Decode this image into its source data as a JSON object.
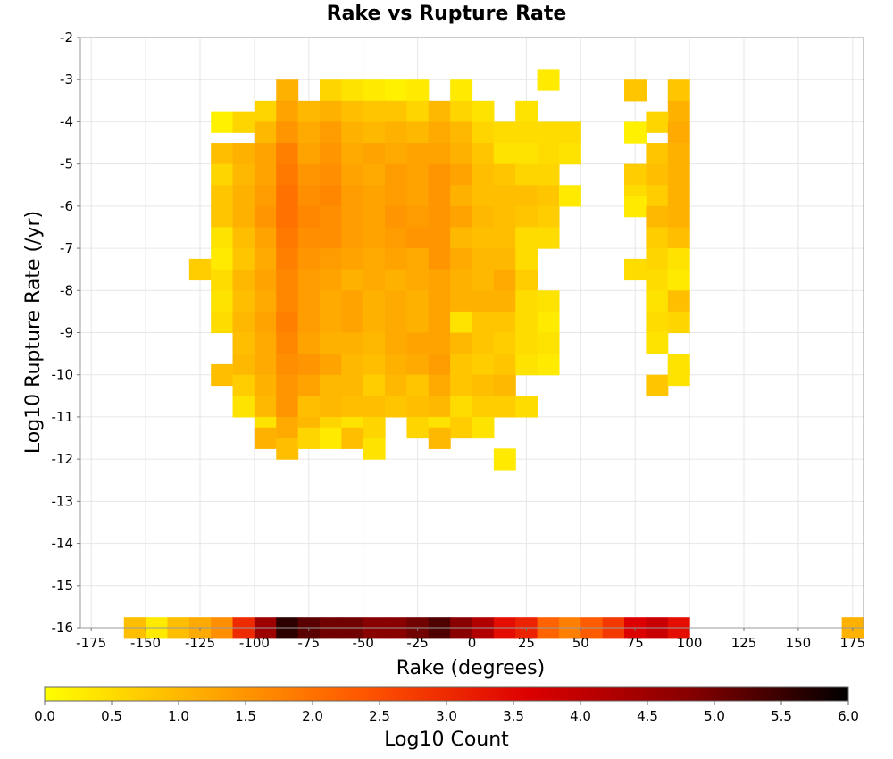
{
  "chart_data": {
    "type": "heatmap",
    "title": "Rake vs Rupture Rate",
    "xlabel": "Rake (degrees)",
    "ylabel": "Log10 Rupture Rate (/yr)",
    "xlim": [
      -180,
      180
    ],
    "ylim": [
      -16,
      -2
    ],
    "x_ticks": [
      -175,
      -150,
      -125,
      -100,
      -75,
      -50,
      -25,
      0,
      25,
      50,
      75,
      100,
      125,
      150,
      175
    ],
    "y_ticks": [
      -2,
      -3,
      -4,
      -5,
      -6,
      -7,
      -8,
      -9,
      -10,
      -11,
      -12,
      -13,
      -14,
      -15,
      -16
    ],
    "bin_width_x": 10,
    "bin_height_y": 0.5,
    "grid": true,
    "colorbar": {
      "label": "Log10 Count",
      "min": 0.0,
      "max": 6.0,
      "ticks": [
        "0.0",
        "0.5",
        "1.0",
        "1.5",
        "2.0",
        "2.5",
        "3.0",
        "3.5",
        "4.0",
        "4.5",
        "5.0",
        "5.5",
        "6.0"
      ],
      "colors": [
        "#ffff00",
        "#ffaa00",
        "#ff5500",
        "#dd0000",
        "#880000",
        "#000000"
      ]
    },
    "cells_note": "each cell: [rake bin center (degrees), log10 rate bin center, log10 count]",
    "cells": [
      [
        -155,
        -16,
        0.9
      ],
      [
        -145,
        -16,
        0.3
      ],
      [
        -135,
        -16,
        0.9
      ],
      [
        -125,
        -16,
        1.2
      ],
      [
        -115,
        -16,
        1.6
      ],
      [
        -105,
        -16,
        3.0
      ],
      [
        -95,
        -16,
        4.5
      ],
      [
        -85,
        -16,
        5.6
      ],
      [
        -75,
        -16,
        5.2
      ],
      [
        -65,
        -16,
        5.0
      ],
      [
        -55,
        -16,
        5.0
      ],
      [
        -45,
        -16,
        4.8
      ],
      [
        -35,
        -16,
        4.8
      ],
      [
        -25,
        -16,
        5.0
      ],
      [
        -15,
        -16,
        5.3
      ],
      [
        -5,
        -16,
        4.8
      ],
      [
        5,
        -16,
        4.2
      ],
      [
        15,
        -16,
        3.4
      ],
      [
        25,
        -16,
        3.1
      ],
      [
        35,
        -16,
        2.2
      ],
      [
        45,
        -16,
        1.8
      ],
      [
        55,
        -16,
        2.3
      ],
      [
        65,
        -16,
        2.8
      ],
      [
        75,
        -16,
        3.6
      ],
      [
        85,
        -16,
        3.9
      ],
      [
        95,
        -16,
        3.4
      ],
      [
        175,
        -16,
        1.1
      ],
      [
        -85,
        -3.25,
        1.1
      ],
      [
        -65,
        -3.25,
        0.6
      ],
      [
        -55,
        -3.25,
        0.4
      ],
      [
        -45,
        -3.25,
        0.3
      ],
      [
        -35,
        -3.25,
        0.2
      ],
      [
        -25,
        -3.25,
        0.3
      ],
      [
        -5,
        -3.25,
        0.3
      ],
      [
        35,
        -3.0,
        0.3
      ],
      [
        75,
        -3.25,
        0.8
      ],
      [
        95,
        -3.25,
        0.8
      ],
      [
        -95,
        -3.75,
        0.6
      ],
      [
        -85,
        -3.75,
        1.3
      ],
      [
        -75,
        -3.75,
        1.0
      ],
      [
        -65,
        -3.75,
        1.1
      ],
      [
        -55,
        -3.75,
        0.9
      ],
      [
        -45,
        -3.75,
        0.8
      ],
      [
        -35,
        -3.75,
        0.8
      ],
      [
        -25,
        -3.75,
        0.6
      ],
      [
        -15,
        -3.75,
        1.0
      ],
      [
        -5,
        -3.75,
        0.6
      ],
      [
        5,
        -3.75,
        0.4
      ],
      [
        25,
        -3.75,
        0.4
      ],
      [
        95,
        -3.75,
        1.1
      ],
      [
        -115,
        -4.0,
        0.2
      ],
      [
        -105,
        -4.0,
        0.6
      ],
      [
        -95,
        -4.25,
        1.0
      ],
      [
        -85,
        -4.25,
        1.5
      ],
      [
        -75,
        -4.25,
        1.2
      ],
      [
        -65,
        -4.25,
        1.4
      ],
      [
        -55,
        -4.25,
        1.1
      ],
      [
        -45,
        -4.25,
        1.0
      ],
      [
        -35,
        -4.25,
        1.1
      ],
      [
        -25,
        -4.25,
        1.0
      ],
      [
        -15,
        -4.25,
        1.2
      ],
      [
        -5,
        -4.25,
        1.0
      ],
      [
        5,
        -4.25,
        0.6
      ],
      [
        15,
        -4.25,
        0.5
      ],
      [
        25,
        -4.25,
        0.5
      ],
      [
        35,
        -4.25,
        0.5
      ],
      [
        45,
        -4.25,
        0.5
      ],
      [
        75,
        -4.25,
        0.2
      ],
      [
        85,
        -4.0,
        0.6
      ],
      [
        95,
        -4.25,
        1.2
      ],
      [
        -115,
        -4.75,
        0.9
      ],
      [
        -105,
        -4.75,
        1.1
      ],
      [
        -95,
        -4.75,
        1.3
      ],
      [
        -85,
        -4.75,
        1.8
      ],
      [
        -75,
        -4.75,
        1.3
      ],
      [
        -65,
        -4.75,
        1.5
      ],
      [
        -55,
        -4.75,
        1.2
      ],
      [
        -45,
        -4.75,
        1.3
      ],
      [
        -35,
        -4.75,
        1.2
      ],
      [
        -25,
        -4.75,
        1.3
      ],
      [
        -15,
        -4.75,
        1.3
      ],
      [
        -5,
        -4.75,
        1.1
      ],
      [
        5,
        -4.75,
        0.8
      ],
      [
        15,
        -4.75,
        0.4
      ],
      [
        25,
        -4.75,
        0.4
      ],
      [
        35,
        -4.75,
        0.5
      ],
      [
        45,
        -4.75,
        0.4
      ],
      [
        85,
        -4.75,
        0.8
      ],
      [
        95,
        -4.75,
        1.1
      ],
      [
        -115,
        -5.25,
        0.6
      ],
      [
        -105,
        -5.25,
        1.0
      ],
      [
        -95,
        -5.25,
        1.3
      ],
      [
        -85,
        -5.25,
        1.9
      ],
      [
        -75,
        -5.25,
        1.5
      ],
      [
        -65,
        -5.25,
        1.6
      ],
      [
        -55,
        -5.25,
        1.3
      ],
      [
        -45,
        -5.25,
        1.2
      ],
      [
        -35,
        -5.25,
        1.4
      ],
      [
        -25,
        -5.25,
        1.3
      ],
      [
        -15,
        -5.25,
        1.5
      ],
      [
        -5,
        -5.25,
        1.3
      ],
      [
        5,
        -5.25,
        0.9
      ],
      [
        15,
        -5.25,
        0.8
      ],
      [
        25,
        -5.25,
        0.6
      ],
      [
        35,
        -5.25,
        0.6
      ],
      [
        75,
        -5.25,
        0.7
      ],
      [
        85,
        -5.25,
        0.9
      ],
      [
        95,
        -5.25,
        1.1
      ],
      [
        -115,
        -5.75,
        0.8
      ],
      [
        -105,
        -5.75,
        1.1
      ],
      [
        -95,
        -5.75,
        1.4
      ],
      [
        -85,
        -5.75,
        2.0
      ],
      [
        -75,
        -5.75,
        1.6
      ],
      [
        -65,
        -5.75,
        1.7
      ],
      [
        -55,
        -5.75,
        1.4
      ],
      [
        -45,
        -5.75,
        1.3
      ],
      [
        -35,
        -5.75,
        1.4
      ],
      [
        -25,
        -5.75,
        1.3
      ],
      [
        -15,
        -5.75,
        1.5
      ],
      [
        -5,
        -5.75,
        1.1
      ],
      [
        5,
        -5.75,
        0.9
      ],
      [
        15,
        -5.75,
        0.9
      ],
      [
        25,
        -5.75,
        0.9
      ],
      [
        35,
        -5.75,
        0.8
      ],
      [
        45,
        -5.75,
        0.3
      ],
      [
        75,
        -5.75,
        0.5
      ],
      [
        85,
        -5.75,
        0.7
      ],
      [
        95,
        -5.75,
        1.1
      ],
      [
        -115,
        -6.25,
        0.8
      ],
      [
        -105,
        -6.25,
        1.1
      ],
      [
        -95,
        -6.25,
        1.5
      ],
      [
        -85,
        -6.25,
        2.0
      ],
      [
        -75,
        -6.25,
        1.7
      ],
      [
        -65,
        -6.25,
        1.6
      ],
      [
        -55,
        -6.25,
        1.4
      ],
      [
        -45,
        -6.25,
        1.3
      ],
      [
        -35,
        -6.25,
        1.5
      ],
      [
        -25,
        -6.25,
        1.4
      ],
      [
        -15,
        -6.25,
        1.5
      ],
      [
        -5,
        -6.25,
        1.3
      ],
      [
        5,
        -6.25,
        1.0
      ],
      [
        15,
        -6.25,
        0.9
      ],
      [
        25,
        -6.25,
        0.8
      ],
      [
        35,
        -6.25,
        0.7
      ],
      [
        75,
        -6.0,
        0.3
      ],
      [
        85,
        -6.25,
        1.0
      ],
      [
        95,
        -6.25,
        1.1
      ],
      [
        -115,
        -6.75,
        0.4
      ],
      [
        -105,
        -6.75,
        0.9
      ],
      [
        -95,
        -6.75,
        1.3
      ],
      [
        -85,
        -6.75,
        1.9
      ],
      [
        -75,
        -6.75,
        1.6
      ],
      [
        -65,
        -6.75,
        1.6
      ],
      [
        -55,
        -6.75,
        1.4
      ],
      [
        -45,
        -6.75,
        1.3
      ],
      [
        -35,
        -6.75,
        1.4
      ],
      [
        -25,
        -6.75,
        1.5
      ],
      [
        -15,
        -6.75,
        1.5
      ],
      [
        -5,
        -6.75,
        1.0
      ],
      [
        5,
        -6.75,
        0.9
      ],
      [
        15,
        -6.75,
        0.9
      ],
      [
        25,
        -6.75,
        0.5
      ],
      [
        35,
        -6.75,
        0.5
      ],
      [
        85,
        -6.75,
        0.7
      ],
      [
        95,
        -6.75,
        0.9
      ],
      [
        -125,
        -7.5,
        0.7
      ],
      [
        -115,
        -7.25,
        0.3
      ],
      [
        -105,
        -7.25,
        0.8
      ],
      [
        -95,
        -7.25,
        1.2
      ],
      [
        -85,
        -7.25,
        1.8
      ],
      [
        -75,
        -7.25,
        1.5
      ],
      [
        -65,
        -7.25,
        1.4
      ],
      [
        -55,
        -7.25,
        1.3
      ],
      [
        -45,
        -7.25,
        1.2
      ],
      [
        -35,
        -7.25,
        1.3
      ],
      [
        -25,
        -7.25,
        1.2
      ],
      [
        -15,
        -7.25,
        1.5
      ],
      [
        -5,
        -7.25,
        1.2
      ],
      [
        5,
        -7.25,
        1.0
      ],
      [
        15,
        -7.25,
        1.0
      ],
      [
        25,
        -7.25,
        0.5
      ],
      [
        75,
        -7.5,
        0.5
      ],
      [
        85,
        -7.25,
        0.6
      ],
      [
        95,
        -7.25,
        0.4
      ],
      [
        -115,
        -7.75,
        0.5
      ],
      [
        -105,
        -7.75,
        1.0
      ],
      [
        -95,
        -7.75,
        1.3
      ],
      [
        -85,
        -7.75,
        1.7
      ],
      [
        -75,
        -7.75,
        1.4
      ],
      [
        -65,
        -7.75,
        1.3
      ],
      [
        -55,
        -7.75,
        1.1
      ],
      [
        -45,
        -7.75,
        1.2
      ],
      [
        -35,
        -7.75,
        1.1
      ],
      [
        -25,
        -7.75,
        1.2
      ],
      [
        -15,
        -7.75,
        1.3
      ],
      [
        -5,
        -7.75,
        1.1
      ],
      [
        5,
        -7.75,
        1.0
      ],
      [
        15,
        -7.75,
        1.2
      ],
      [
        25,
        -7.75,
        0.7
      ],
      [
        85,
        -7.75,
        0.5
      ],
      [
        95,
        -7.75,
        0.3
      ],
      [
        -115,
        -8.25,
        0.4
      ],
      [
        -105,
        -8.25,
        0.9
      ],
      [
        -95,
        -8.25,
        1.2
      ],
      [
        -85,
        -8.25,
        1.7
      ],
      [
        -75,
        -8.25,
        1.4
      ],
      [
        -65,
        -8.25,
        1.2
      ],
      [
        -55,
        -8.25,
        1.3
      ],
      [
        -45,
        -8.25,
        1.1
      ],
      [
        -35,
        -8.25,
        1.2
      ],
      [
        -25,
        -8.25,
        1.1
      ],
      [
        -15,
        -8.25,
        1.3
      ],
      [
        -5,
        -8.25,
        1.1
      ],
      [
        5,
        -8.25,
        1.1
      ],
      [
        15,
        -8.25,
        1.1
      ],
      [
        25,
        -8.25,
        0.5
      ],
      [
        35,
        -8.25,
        0.4
      ],
      [
        85,
        -8.25,
        0.4
      ],
      [
        95,
        -8.25,
        0.9
      ],
      [
        -115,
        -8.75,
        0.5
      ],
      [
        -105,
        -8.75,
        1.0
      ],
      [
        -95,
        -8.75,
        1.3
      ],
      [
        -85,
        -8.75,
        1.8
      ],
      [
        -75,
        -8.75,
        1.4
      ],
      [
        -65,
        -8.75,
        1.2
      ],
      [
        -55,
        -8.75,
        1.3
      ],
      [
        -45,
        -8.75,
        1.1
      ],
      [
        -35,
        -8.75,
        1.2
      ],
      [
        -25,
        -8.75,
        1.1
      ],
      [
        -15,
        -8.75,
        1.3
      ],
      [
        -5,
        -8.75,
        0.4
      ],
      [
        5,
        -8.75,
        0.8
      ],
      [
        15,
        -8.75,
        0.8
      ],
      [
        25,
        -8.75,
        0.5
      ],
      [
        35,
        -8.75,
        0.3
      ],
      [
        85,
        -8.75,
        0.5
      ],
      [
        95,
        -8.75,
        0.6
      ],
      [
        -105,
        -9.25,
        0.9
      ],
      [
        -95,
        -9.25,
        1.2
      ],
      [
        -85,
        -9.25,
        1.7
      ],
      [
        -75,
        -9.25,
        1.3
      ],
      [
        -65,
        -9.25,
        1.1
      ],
      [
        -55,
        -9.25,
        1.1
      ],
      [
        -45,
        -9.25,
        1.0
      ],
      [
        -35,
        -9.25,
        1.2
      ],
      [
        -25,
        -9.25,
        1.3
      ],
      [
        -15,
        -9.25,
        1.3
      ],
      [
        -5,
        -9.25,
        1.0
      ],
      [
        5,
        -9.25,
        0.8
      ],
      [
        15,
        -9.25,
        0.7
      ],
      [
        25,
        -9.25,
        0.5
      ],
      [
        35,
        -9.25,
        0.4
      ],
      [
        85,
        -9.25,
        0.4
      ],
      [
        -105,
        -9.75,
        1.0
      ],
      [
        -95,
        -9.75,
        1.2
      ],
      [
        -85,
        -9.75,
        1.6
      ],
      [
        -75,
        -9.75,
        1.5
      ],
      [
        -65,
        -9.75,
        1.3
      ],
      [
        -55,
        -9.75,
        1.0
      ],
      [
        -45,
        -9.75,
        0.9
      ],
      [
        -35,
        -9.75,
        1.1
      ],
      [
        -25,
        -9.75,
        1.2
      ],
      [
        -15,
        -9.75,
        1.4
      ],
      [
        -5,
        -9.75,
        0.8
      ],
      [
        5,
        -9.75,
        0.7
      ],
      [
        15,
        -9.75,
        0.8
      ],
      [
        25,
        -9.75,
        0.4
      ],
      [
        35,
        -9.75,
        0.3
      ],
      [
        95,
        -9.75,
        0.4
      ],
      [
        -115,
        -10.0,
        0.9
      ],
      [
        -105,
        -10.25,
        0.7
      ],
      [
        -95,
        -10.25,
        1.1
      ],
      [
        -85,
        -10.25,
        1.5
      ],
      [
        -75,
        -10.25,
        1.3
      ],
      [
        -65,
        -10.25,
        1.0
      ],
      [
        -55,
        -10.25,
        1.0
      ],
      [
        -45,
        -10.25,
        0.7
      ],
      [
        -35,
        -10.25,
        1.0
      ],
      [
        -25,
        -10.25,
        0.8
      ],
      [
        -15,
        -10.25,
        1.2
      ],
      [
        -5,
        -10.25,
        0.8
      ],
      [
        5,
        -10.25,
        0.9
      ],
      [
        15,
        -10.25,
        1.0
      ],
      [
        85,
        -10.25,
        0.8
      ],
      [
        95,
        -10.0,
        0.4
      ],
      [
        -105,
        -10.75,
        0.4
      ],
      [
        -95,
        -10.75,
        1.0
      ],
      [
        -85,
        -10.75,
        1.5
      ],
      [
        -75,
        -10.75,
        0.9
      ],
      [
        -65,
        -10.75,
        1.0
      ],
      [
        -55,
        -10.75,
        0.9
      ],
      [
        -45,
        -10.75,
        0.9
      ],
      [
        -35,
        -10.75,
        0.8
      ],
      [
        -25,
        -10.75,
        0.9
      ],
      [
        -15,
        -10.75,
        1.0
      ],
      [
        -5,
        -10.75,
        0.5
      ],
      [
        5,
        -10.75,
        0.7
      ],
      [
        15,
        -10.75,
        0.7
      ],
      [
        25,
        -10.75,
        0.5
      ],
      [
        -95,
        -11.25,
        0.4
      ],
      [
        -85,
        -11.25,
        1.2
      ],
      [
        -75,
        -11.25,
        1.0
      ],
      [
        -65,
        -11.25,
        0.6
      ],
      [
        -55,
        -11.25,
        0.4
      ],
      [
        -45,
        -11.25,
        0.6
      ],
      [
        -25,
        -11.25,
        0.6
      ],
      [
        -15,
        -11.25,
        0.4
      ],
      [
        -5,
        -11.25,
        0.7
      ],
      [
        5,
        -11.25,
        0.4
      ],
      [
        -95,
        -11.5,
        1.1
      ],
      [
        -85,
        -11.75,
        0.9
      ],
      [
        -75,
        -11.5,
        0.6
      ],
      [
        -65,
        -11.5,
        0.3
      ],
      [
        -55,
        -11.5,
        0.9
      ],
      [
        -15,
        -11.5,
        1.0
      ],
      [
        -45,
        -11.75,
        0.4
      ],
      [
        15,
        -12.0,
        0.3
      ]
    ]
  }
}
